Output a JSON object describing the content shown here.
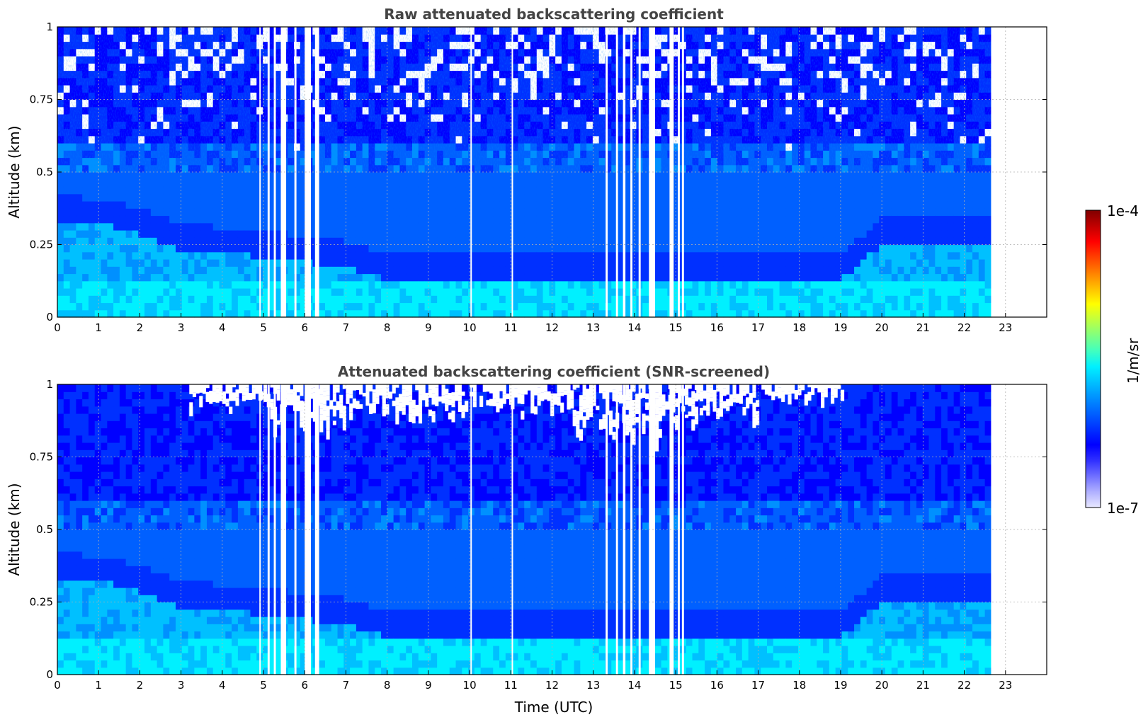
{
  "chart_data": [
    {
      "type": "heatmap",
      "title": "Raw attenuated backscattering coefficient",
      "xlabel": "",
      "ylabel": "Altitude (km)",
      "xlim": [
        0,
        24
      ],
      "ylim": [
        0,
        1
      ],
      "x_ticks": [
        0,
        1,
        2,
        3,
        4,
        5,
        6,
        7,
        8,
        9,
        10,
        11,
        12,
        13,
        14,
        15,
        16,
        17,
        18,
        19,
        20,
        21,
        22,
        23
      ],
      "y_ticks": [
        0,
        0.25,
        0.5,
        0.75,
        1
      ],
      "y_tick_labels": [
        "0",
        "0.25",
        "0.5",
        "0.75",
        "1"
      ],
      "data_end_time": 22.65,
      "gaps_utc": [
        [
          4.9,
          4.93
        ],
        [
          5.1,
          5.15
        ],
        [
          5.25,
          5.3
        ],
        [
          5.42,
          5.55
        ],
        [
          5.75,
          5.8
        ],
        [
          6.0,
          6.15
        ],
        [
          6.25,
          6.35
        ],
        [
          10.02,
          10.05
        ],
        [
          11.02,
          11.05
        ],
        [
          13.3,
          13.35
        ],
        [
          13.55,
          13.6
        ],
        [
          13.72,
          13.78
        ],
        [
          13.9,
          13.95
        ],
        [
          14.1,
          14.15
        ],
        [
          14.35,
          14.5
        ],
        [
          14.85,
          14.95
        ],
        [
          15.05,
          15.1
        ],
        [
          15.15,
          15.2
        ]
      ],
      "grid": true,
      "features": {
        "aerosol_layer_top_km": [
          [
            0,
            0.38
          ],
          [
            1.5,
            0.36
          ],
          [
            3,
            0.28
          ],
          [
            5,
            0.26
          ],
          [
            7,
            0.22
          ],
          [
            8,
            0.18
          ],
          [
            19,
            0.18
          ],
          [
            20,
            0.3
          ],
          [
            22.6,
            0.3
          ]
        ],
        "noise_above_km": 0.5
      },
      "colorscale": "jet"
    },
    {
      "type": "heatmap",
      "title": "Attenuated backscattering coefficient (SNR-screened)",
      "xlabel": "Time (UTC)",
      "ylabel": "Altitude (km)",
      "xlim": [
        0,
        24
      ],
      "ylim": [
        0,
        1
      ],
      "x_ticks": [
        0,
        1,
        2,
        3,
        4,
        5,
        6,
        7,
        8,
        9,
        10,
        11,
        12,
        13,
        14,
        15,
        16,
        17,
        18,
        19,
        20,
        21,
        22,
        23
      ],
      "y_ticks": [
        0,
        0.25,
        0.5,
        0.75,
        1
      ],
      "y_tick_labels": [
        "0",
        "0.25",
        "0.5",
        "0.75",
        "1"
      ],
      "data_end_time": 22.65,
      "gaps_utc": [
        [
          4.9,
          4.93
        ],
        [
          5.1,
          5.15
        ],
        [
          5.25,
          5.3
        ],
        [
          5.42,
          5.55
        ],
        [
          5.75,
          5.8
        ],
        [
          6.0,
          6.15
        ],
        [
          6.25,
          6.35
        ],
        [
          10.02,
          10.05
        ],
        [
          11.02,
          11.05
        ],
        [
          13.3,
          13.35
        ],
        [
          13.55,
          13.6
        ],
        [
          13.72,
          13.78
        ],
        [
          13.9,
          13.95
        ],
        [
          14.1,
          14.15
        ],
        [
          14.35,
          14.5
        ],
        [
          14.85,
          14.95
        ],
        [
          15.05,
          15.1
        ],
        [
          15.15,
          15.2
        ]
      ],
      "screened_regions": [
        [
          3.2,
          5.0,
          0.92
        ],
        [
          5.0,
          7.0,
          0.82
        ],
        [
          7.0,
          10.0,
          0.88
        ],
        [
          10.0,
          11.0,
          0.92
        ],
        [
          11.0,
          12.5,
          0.9
        ],
        [
          12.5,
          15.5,
          0.8
        ],
        [
          15.5,
          17.0,
          0.88
        ],
        [
          17.0,
          19.0,
          0.95
        ]
      ],
      "grid": true,
      "colorscale": "jet"
    }
  ],
  "colorbar": {
    "label": "1/m/sr",
    "max_label": "1e-4",
    "min_label": "1e-7",
    "colors": [
      "#e8e8ff",
      "#b0b0ff",
      "#7070ff",
      "#3030ff",
      "#0000ff",
      "#0030ff",
      "#0060ff",
      "#0090ff",
      "#00c0ff",
      "#00f0ff",
      "#40ffc0",
      "#80ff80",
      "#c0ff40",
      "#ffff00",
      "#ffc000",
      "#ff8000",
      "#ff4000",
      "#ff0000",
      "#c00000",
      "#800000"
    ]
  }
}
